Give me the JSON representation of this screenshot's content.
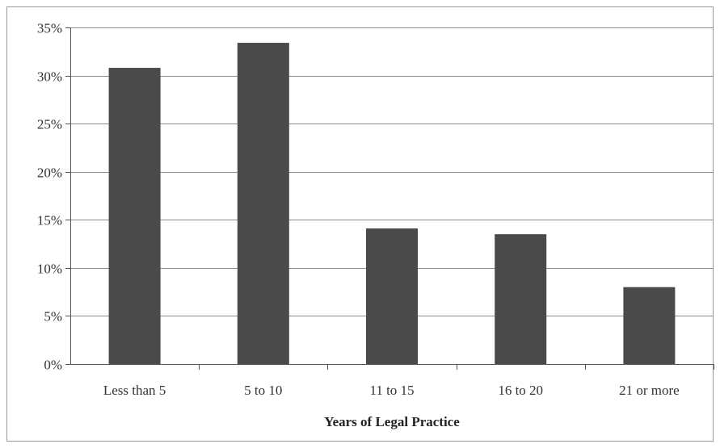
{
  "chart_data": {
    "type": "bar",
    "title": "",
    "xlabel": "Years of Legal Practice",
    "ylabel": "",
    "categories": [
      "Less than 5",
      "5 to 10",
      "11 to 15",
      "16 to 20",
      "21 or more"
    ],
    "values": [
      30.8,
      33.4,
      14.1,
      13.5,
      8.0
    ],
    "value_format": "percent",
    "ylim": [
      0,
      35
    ],
    "yticks": [
      0,
      5,
      10,
      15,
      20,
      25,
      30,
      35
    ],
    "ytick_labels": [
      "0%",
      "5%",
      "10%",
      "15%",
      "20%",
      "25%",
      "30%",
      "35%"
    ],
    "grid": true,
    "legend": "none",
    "colors": {
      "bar": "#4a4a4a",
      "grid": "#8c8c8c",
      "axis": "#555555",
      "frame": "#9a9a9a"
    }
  }
}
